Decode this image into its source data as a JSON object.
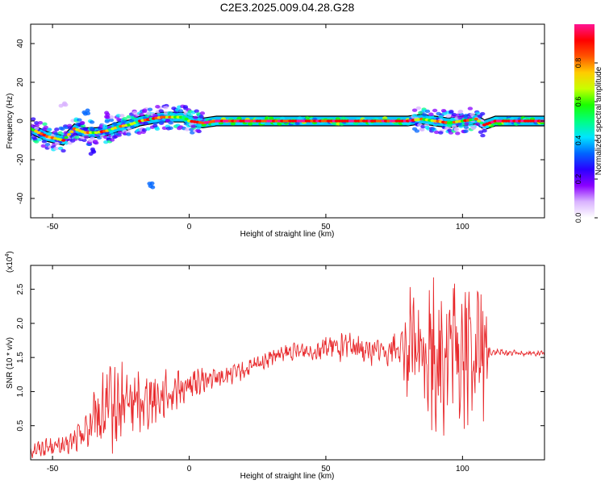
{
  "title": "C2E3.2025.009.04.28.G28",
  "colors": {
    "snr_line": "#e8282b",
    "cmap": [
      "#ffffff",
      "#d9b3ff",
      "#8a00ff",
      "#2a00ff",
      "#0066ff",
      "#00e5ff",
      "#00ff80",
      "#1aff00",
      "#c8ff00",
      "#ffcc00",
      "#ff5500",
      "#ff0000",
      "#ff1493"
    ]
  },
  "chart_data": [
    {
      "type": "heatmap",
      "xlabel": "Height of straight line (km)",
      "ylabel": "Frequency (Hz)",
      "xlim": [
        -58,
        130
      ],
      "ylim": [
        -50,
        50
      ],
      "xticks": [
        -50,
        0,
        50,
        100
      ],
      "yticks": [
        -40,
        -20,
        0,
        20,
        40
      ],
      "colorbar": {
        "label": "Normalized spectral amplitude",
        "range": [
          0,
          1
        ],
        "ticks": [
          0.0,
          0.2,
          0.4,
          0.6,
          0.8
        ]
      },
      "ridge": {
        "x": [
          -58,
          -52,
          -46,
          -42,
          -38,
          -34,
          -30,
          -26,
          -22,
          -18,
          -14,
          -10,
          -6,
          -2,
          0,
          5,
          10,
          20,
          30,
          40,
          50,
          60,
          70,
          80,
          85,
          90,
          95,
          100,
          105,
          108,
          112,
          120,
          130
        ],
        "y": [
          -4,
          -8,
          -10,
          -4,
          -6,
          -6,
          -5,
          -3,
          -2,
          0,
          1,
          2,
          2,
          2,
          0,
          -1,
          0,
          0,
          0,
          0,
          0,
          0,
          0,
          0,
          1,
          0,
          -1,
          0,
          1,
          -2,
          0,
          0,
          0
        ]
      },
      "blobs": [
        {
          "x": -38,
          "y": 5,
          "amp": 0.3
        },
        {
          "x": -35,
          "y": -16,
          "amp": 0.25
        },
        {
          "x": -14,
          "y": -33,
          "amp": 0.3
        },
        {
          "x": -30,
          "y": 3,
          "amp": 0.2
        },
        {
          "x": -46,
          "y": 9,
          "amp": 0.1
        }
      ]
    },
    {
      "type": "line",
      "xlabel": "Height of straight line (km)",
      "ylabel": "SNR (10 * v/v)",
      "y_multiplier": "(x10",
      "y_multiplier_exp": "4",
      "multiplier_close": ")",
      "xlim": [
        -58,
        130
      ],
      "ylim": [
        0,
        2.85
      ],
      "xticks": [
        -50,
        0,
        50,
        100
      ],
      "yticks": [
        0.5,
        1.0,
        1.5,
        2.0,
        2.5
      ],
      "ytick_labels": [
        "0.5",
        "1.0",
        "1.5",
        "2.0",
        "2.5"
      ],
      "series": [
        {
          "x": [
            -58,
            -50,
            -45,
            -40,
            -35,
            -32,
            -28,
            -25,
            -22,
            -18,
            -15,
            -10,
            -5,
            0,
            5,
            10,
            15,
            20,
            25,
            30,
            35,
            40,
            45,
            50,
            55,
            60,
            65,
            70,
            75,
            80,
            85,
            90,
            95,
            100,
            105,
            108,
            110,
            115,
            120,
            125,
            130
          ],
          "y": [
            0.15,
            0.2,
            0.2,
            0.35,
            0.55,
            0.7,
            0.75,
            0.8,
            0.85,
            0.85,
            0.9,
            0.95,
            1.0,
            1.1,
            1.15,
            1.2,
            1.25,
            1.3,
            1.4,
            1.5,
            1.55,
            1.6,
            1.6,
            1.65,
            1.65,
            1.65,
            1.6,
            1.6,
            1.65,
            1.6,
            1.6,
            1.55,
            1.55,
            1.6,
            1.6,
            1.6,
            1.58,
            1.57,
            1.57,
            1.56,
            1.56
          ]
        }
      ],
      "noise_amplitude": {
        "x": [
          -58,
          -45,
          -38,
          -30,
          -25,
          -15,
          0,
          20,
          40,
          55,
          70,
          78,
          80,
          86,
          90,
          100,
          108,
          110,
          130
        ],
        "amp": [
          0.12,
          0.12,
          0.3,
          0.6,
          0.55,
          0.4,
          0.2,
          0.12,
          0.12,
          0.2,
          0.2,
          0.25,
          0.8,
          0.8,
          1.15,
          1.15,
          0.9,
          0.05,
          0.03
        ]
      }
    }
  ]
}
